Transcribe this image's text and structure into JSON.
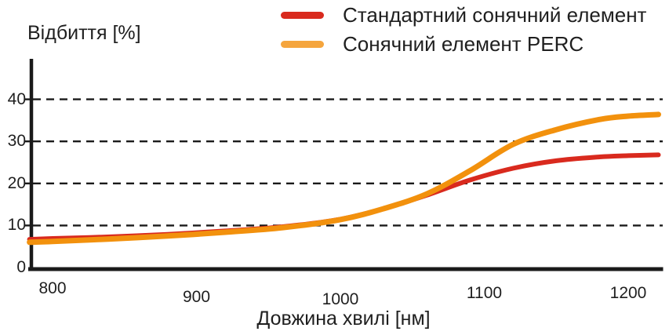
{
  "figure": {
    "background": "#ffffff",
    "text_color": "#1f1f1f",
    "axis_color": "#1a1a1a"
  },
  "legend": [
    {
      "label": "Стандартний сонячний елемент",
      "color": "#d92a1e"
    },
    {
      "label": "Сонячний елемент PERC",
      "color": "#f5a53d"
    }
  ],
  "chart_data": {
    "type": "line",
    "title": "",
    "ylabel": "Відбиття [%]",
    "xlabel": "Довжина хвилі [нм]",
    "xlim": [
      784,
      1225
    ],
    "ylim": [
      0,
      44
    ],
    "x_ticks": [
      800,
      900,
      1000,
      1100,
      1200
    ],
    "y_ticks": [
      0,
      10,
      20,
      30,
      40
    ],
    "grid": "horizontal dashed black lines at y = 10, 20, 30, 40",
    "legend_position": "top-right",
    "x": [
      784,
      800,
      840,
      880,
      920,
      960,
      1000,
      1030,
      1060,
      1090,
      1120,
      1150,
      1180,
      1200,
      1221
    ],
    "series": [
      {
        "name": "Стандартний сонячний елемент",
        "color": "#d92a1e",
        "stroke_width": 6,
        "values": [
          6.7,
          6.9,
          7.3,
          7.9,
          8.7,
          9.7,
          11.5,
          14.0,
          17.2,
          20.8,
          23.6,
          25.4,
          26.3,
          26.6,
          26.8
        ]
      },
      {
        "name": "Сонячний елемент PERC",
        "color": "#f2910d",
        "stroke_width": 7,
        "values": [
          6.0,
          6.2,
          6.8,
          7.5,
          8.4,
          9.5,
          11.4,
          14.0,
          17.5,
          23.0,
          29.3,
          32.8,
          35.2,
          36.0,
          36.4
        ]
      }
    ]
  }
}
